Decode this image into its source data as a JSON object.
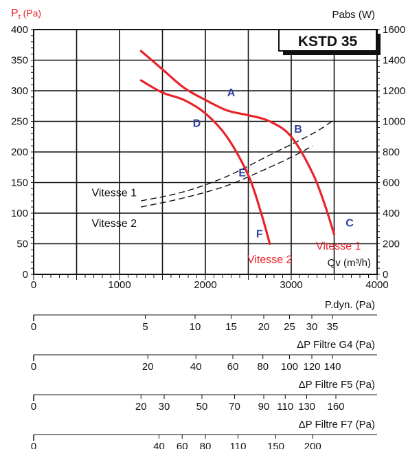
{
  "chart_data": {
    "type": "line",
    "badge": "KSTD 35",
    "left_axis_label": "P",
    "left_axis_sub": "t",
    "left_axis_unit": " (Pa)",
    "right_axis_label": "Pabs (W)",
    "x_axis_label": "Qv (m³/h)",
    "xlim": [
      0,
      4000
    ],
    "ylim": [
      0,
      400
    ],
    "ylim_right": [
      0,
      1600
    ],
    "x_ticks": [
      0,
      1000,
      2000,
      3000,
      4000
    ],
    "y_ticks": [
      0,
      50,
      100,
      150,
      200,
      250,
      300,
      350,
      400
    ],
    "y_right_ticks": [
      0,
      200,
      400,
      600,
      800,
      1000,
      1200,
      1400,
      1600
    ],
    "colors": {
      "pressure": "#e8232a",
      "power": "#111111",
      "points": "#2e3f9e",
      "badge_bg": "#111111"
    },
    "pressure_series": [
      {
        "name": "Vitesse 1",
        "points": [
          [
            1250,
            365
          ],
          [
            1500,
            335
          ],
          [
            1750,
            305
          ],
          [
            2000,
            285
          ],
          [
            2250,
            268
          ],
          [
            2500,
            260
          ],
          [
            2750,
            250
          ],
          [
            3000,
            225
          ],
          [
            3250,
            165
          ],
          [
            3400,
            110
          ],
          [
            3500,
            65
          ]
        ]
      },
      {
        "name": "Vitesse 2",
        "points": [
          [
            1250,
            317
          ],
          [
            1500,
            297
          ],
          [
            1750,
            285
          ],
          [
            2000,
            263
          ],
          [
            2250,
            225
          ],
          [
            2500,
            162
          ],
          [
            2650,
            100
          ],
          [
            2750,
            50
          ]
        ]
      }
    ],
    "power_series": [
      {
        "name": "Vitesse 1",
        "units": "W",
        "points": [
          [
            1250,
            480
          ],
          [
            1750,
            540
          ],
          [
            2250,
            640
          ],
          [
            2750,
            780
          ],
          [
            3250,
            920
          ],
          [
            3500,
            1010
          ]
        ]
      },
      {
        "name": "Vitesse 2",
        "units": "W",
        "points": [
          [
            1250,
            440
          ],
          [
            1750,
            500
          ],
          [
            2250,
            580
          ],
          [
            2750,
            700
          ],
          [
            3050,
            780
          ],
          [
            3250,
            840
          ]
        ]
      }
    ],
    "point_labels": [
      {
        "label": "A",
        "x": 2300,
        "y": 298
      },
      {
        "label": "B",
        "x": 3080,
        "y": 238
      },
      {
        "label": "C",
        "x": 3680,
        "y": 85
      },
      {
        "label": "D",
        "x": 1900,
        "y": 248
      },
      {
        "label": "E",
        "x": 2430,
        "y": 167
      },
      {
        "label": "F",
        "x": 2630,
        "y": 67
      }
    ],
    "curve_labels": [
      {
        "text": "Vitesse 1",
        "x": 1200,
        "y": 133,
        "color": "#111111"
      },
      {
        "text": "Vitesse 2",
        "x": 1200,
        "y": 83,
        "color": "#111111"
      },
      {
        "text": "Vitesse 1",
        "x": 3550,
        "y": 46,
        "color": "#e8232a"
      },
      {
        "text": "Vitesse 2",
        "x": 2750,
        "y": 24,
        "color": "#e8232a"
      }
    ],
    "sub_axes": [
      {
        "label": "P.dyn. (Pa)",
        "ticks": [
          {
            "v": "0",
            "x": 0
          },
          {
            "v": "5",
            "x": 1300
          },
          {
            "v": "10",
            "x": 1880
          },
          {
            "v": "15",
            "x": 2300
          },
          {
            "v": "20",
            "x": 2680
          },
          {
            "v": "25",
            "x": 2980
          },
          {
            "v": "30",
            "x": 3240
          },
          {
            "v": "35",
            "x": 3480
          }
        ]
      },
      {
        "label": "ΔP Filtre G4 (Pa)",
        "ticks": [
          {
            "v": "0",
            "x": 0
          },
          {
            "v": "20",
            "x": 1330
          },
          {
            "v": "40",
            "x": 1890
          },
          {
            "v": "60",
            "x": 2320
          },
          {
            "v": "80",
            "x": 2670
          },
          {
            "v": "100",
            "x": 2980
          },
          {
            "v": "120",
            "x": 3240
          },
          {
            "v": "140",
            "x": 3480
          }
        ]
      },
      {
        "label": "ΔP Filtre F5 (Pa)",
        "ticks": [
          {
            "v": "0",
            "x": 0
          },
          {
            "v": "20",
            "x": 1250
          },
          {
            "v": "30",
            "x": 1520
          },
          {
            "v": "50",
            "x": 1960
          },
          {
            "v": "70",
            "x": 2340
          },
          {
            "v": "90",
            "x": 2680
          },
          {
            "v": "110",
            "x": 2930
          },
          {
            "v": "130",
            "x": 3180
          },
          {
            "v": "160",
            "x": 3520
          }
        ]
      },
      {
        "label": "ΔP Filtre F7 (Pa)",
        "ticks": [
          {
            "v": "0",
            "x": 0
          },
          {
            "v": "40",
            "x": 1460
          },
          {
            "v": "60",
            "x": 1730
          },
          {
            "v": "80",
            "x": 2000
          },
          {
            "v": "110",
            "x": 2380
          },
          {
            "v": "150",
            "x": 2820
          },
          {
            "v": "200",
            "x": 3250
          }
        ]
      }
    ]
  }
}
